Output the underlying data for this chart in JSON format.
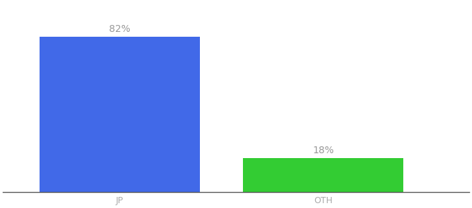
{
  "categories": [
    "JP",
    "OTH"
  ],
  "values": [
    82,
    18
  ],
  "bar_colors": [
    "#4169e8",
    "#33cc33"
  ],
  "label_texts": [
    "82%",
    "18%"
  ],
  "background_color": "#ffffff",
  "ylim": [
    0,
    100
  ],
  "bar_width": 0.55,
  "label_fontsize": 10,
  "tick_fontsize": 9,
  "label_color": "#999999",
  "tick_color": "#aaaaaa",
  "x_positions": [
    0.3,
    1.0
  ],
  "xlim": [
    -0.1,
    1.5
  ]
}
